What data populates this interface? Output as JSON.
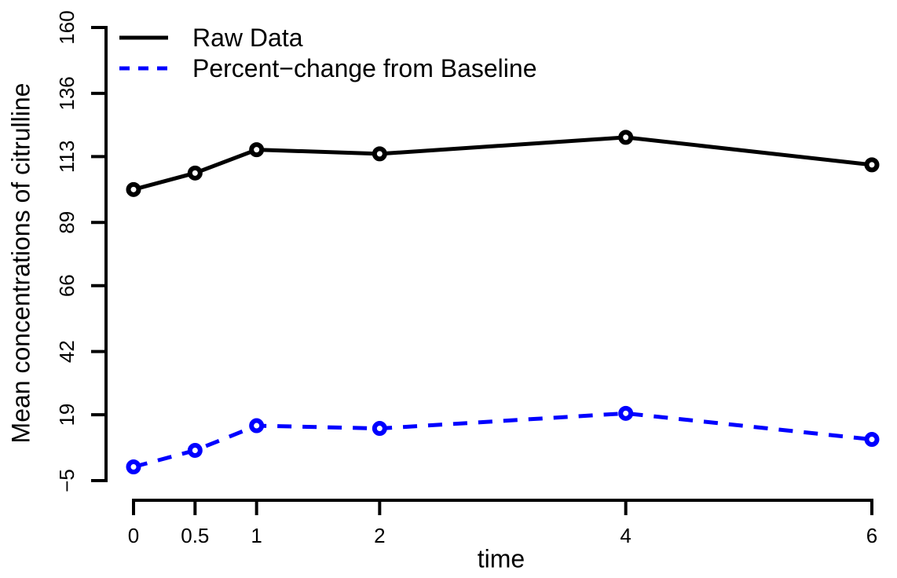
{
  "chart_data": {
    "type": "line",
    "title": "",
    "xlabel": "time",
    "ylabel": "Mean concentrations of citrulline",
    "x": [
      0,
      0.5,
      1,
      2,
      4,
      6
    ],
    "x_tick_labels": [
      "0",
      "0.5",
      "1",
      "2",
      "4",
      "6"
    ],
    "y_ticks": [
      -5,
      19,
      42,
      66,
      89,
      113,
      136,
      160
    ],
    "y_tick_labels": [
      "−5",
      "19",
      "42",
      "66",
      "89",
      "113",
      "136",
      "160"
    ],
    "xlim": [
      0,
      6
    ],
    "ylim": [
      -5,
      160
    ],
    "grid": false,
    "legend_position": "topleft",
    "series": [
      {
        "name": "Raw Data",
        "color": "#000000",
        "line_style": "solid",
        "marker": "circle",
        "values": [
          101,
          107,
          115.5,
          114,
          120,
          110
        ]
      },
      {
        "name": "Percent−change from Baseline",
        "color": "#0000ff",
        "line_style": "dashed",
        "marker": "circle",
        "values": [
          0,
          6,
          15,
          14,
          19.5,
          10
        ]
      }
    ],
    "axis_color": "#000000",
    "background_color": "#ffffff"
  }
}
